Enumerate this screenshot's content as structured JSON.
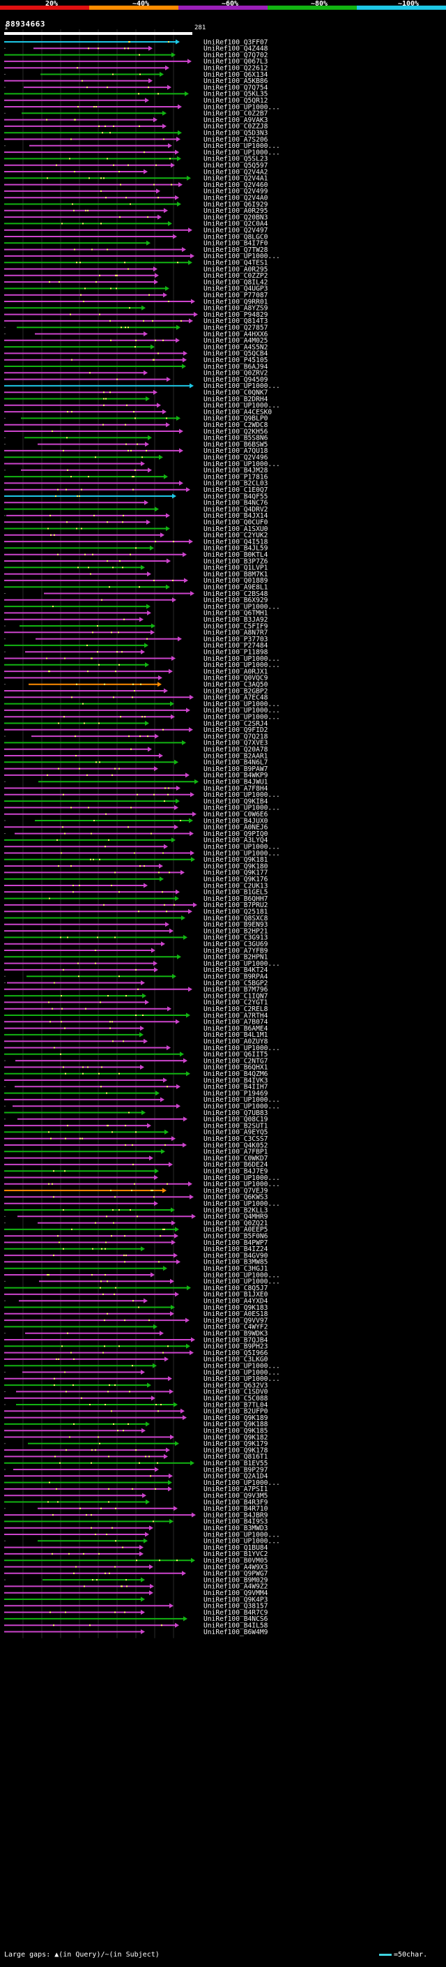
{
  "query_id": "88934663",
  "legend": {
    "labels": [
      "20%",
      "~40%",
      "~60%",
      "~80%",
      "~100%"
    ],
    "colors": [
      "#e01010",
      "#ff8c00",
      "#9b1fb8",
      "#12b412",
      "#1ec8e6"
    ]
  },
  "ruler": {
    "start": "1",
    "end": "281"
  },
  "footer": {
    "gaps_text": "Large gaps: ▲(in Query)/~(in Subject)",
    "scale_text": "=50char."
  },
  "colors": {
    "background": "#000000",
    "query_bar": "#ffffff",
    "grid": "#2a2a2a",
    "dots": "#ffff66"
  },
  "hits": [
    {
      "name": "UniRef100_Q3FF07",
      "color": "#1ec8e6"
    },
    {
      "name": "UniRef100_Q4Z448",
      "color": "#cc44cc"
    },
    {
      "name": "UniRef100_Q7Q702",
      "color": "#12b412"
    },
    {
      "name": "UniRef100_Q067L3",
      "color": "#cc44cc"
    },
    {
      "name": "UniRef100_Q22612",
      "color": "#cc44cc"
    },
    {
      "name": "UniRef100_Q6X134",
      "color": "#12b412"
    },
    {
      "name": "UniRef100_A5KB86",
      "color": "#cc44cc"
    },
    {
      "name": "UniRef100_Q7Q754",
      "color": "#cc44cc"
    },
    {
      "name": "UniRef100_Q5KL35",
      "color": "#12b412"
    },
    {
      "name": "UniRef100_Q5QR12",
      "color": "#cc44cc"
    },
    {
      "name": "UniRef100_UP1000...",
      "color": "#cc44cc"
    },
    {
      "name": "UniRef100_C0Z2B7",
      "color": "#12b412"
    },
    {
      "name": "UniRef100_A9VAK3",
      "color": "#cc44cc"
    },
    {
      "name": "UniRef100_C0ZZJ8",
      "color": "#cc44cc"
    },
    {
      "name": "UniRef100_Q5D3N3",
      "color": "#12b412"
    },
    {
      "name": "UniRef100_A7S206",
      "color": "#cc44cc"
    },
    {
      "name": "UniRef100_UP1000...",
      "color": "#cc44cc"
    },
    {
      "name": "UniRef100_UP1000...",
      "color": "#cc44cc"
    },
    {
      "name": "UniRef100_Q5SL23",
      "color": "#12b412"
    },
    {
      "name": "UniRef100_Q5Q597",
      "color": "#cc44cc"
    },
    {
      "name": "UniRef100_Q2V4A2",
      "color": "#cc44cc"
    },
    {
      "name": "UniRef100_Q2V4A1",
      "color": "#12b412"
    },
    {
      "name": "UniRef100_Q2V460",
      "color": "#cc44cc"
    },
    {
      "name": "UniRef100_Q2V499",
      "color": "#cc44cc"
    },
    {
      "name": "UniRef100_Q2V4A0",
      "color": "#cc44cc"
    },
    {
      "name": "UniRef100_Q6I929",
      "color": "#12b412"
    },
    {
      "name": "UniRef100_A0R295",
      "color": "#cc44cc"
    },
    {
      "name": "UniRef100_Q20BN3",
      "color": "#cc44cc"
    },
    {
      "name": "UniRef100_Q2C0A4",
      "color": "#12b412"
    },
    {
      "name": "UniRef100_Q2V497",
      "color": "#cc44cc"
    },
    {
      "name": "UniRef100_Q8LGC0",
      "color": "#cc44cc"
    },
    {
      "name": "UniRef100_B4I7F0",
      "color": "#12b412"
    },
    {
      "name": "UniRef100_Q7TW28",
      "color": "#cc44cc"
    },
    {
      "name": "UniRef100_UP1000...",
      "color": "#cc44cc"
    },
    {
      "name": "UniRef100_Q4TES1",
      "color": "#12b412"
    },
    {
      "name": "UniRef100_A0R295",
      "color": "#cc44cc"
    },
    {
      "name": "UniRef100_C0ZZP2",
      "color": "#cc44cc"
    },
    {
      "name": "UniRef100_Q8IL42",
      "color": "#cc44cc"
    },
    {
      "name": "UniRef100_Q4UGP3",
      "color": "#12b412"
    },
    {
      "name": "UniRef100_P77087",
      "color": "#cc44cc"
    },
    {
      "name": "UniRef100_Q9RR01",
      "color": "#cc44cc"
    },
    {
      "name": "UniRef100_A8YZS9",
      "color": "#12b412"
    },
    {
      "name": "UniRef100_P94829",
      "color": "#cc44cc"
    },
    {
      "name": "UniRef100_Q814T3",
      "color": "#cc44cc"
    },
    {
      "name": "UniRef100_Q27857",
      "color": "#12b412"
    },
    {
      "name": "UniRef100_A4HXX6",
      "color": "#cc44cc"
    },
    {
      "name": "UniRef100_A4M025",
      "color": "#cc44cc"
    },
    {
      "name": "UniRef100_A4S5N2",
      "color": "#12b412"
    },
    {
      "name": "UniRef100_Q5QCB4",
      "color": "#cc44cc"
    },
    {
      "name": "UniRef100_P45105",
      "color": "#cc44cc"
    },
    {
      "name": "UniRef100_B6AJ94",
      "color": "#12b412"
    },
    {
      "name": "UniRef100_Q0ZRV2",
      "color": "#cc44cc"
    },
    {
      "name": "UniRef100_Q94509",
      "color": "#cc44cc"
    },
    {
      "name": "UniRef100_UP1000...",
      "color": "#1ec8e6"
    },
    {
      "name": "UniRef100_C0QNK7",
      "color": "#cc44cc"
    },
    {
      "name": "UniRef100_B2DRH4",
      "color": "#12b412"
    },
    {
      "name": "UniRef100_UP1000...",
      "color": "#cc44cc"
    },
    {
      "name": "UniRef100_A4CESK0",
      "color": "#cc44cc"
    },
    {
      "name": "UniRef100_Q9BLP0",
      "color": "#12b412"
    },
    {
      "name": "UniRef100_C2WDC8",
      "color": "#cc44cc"
    },
    {
      "name": "UniRef100_Q2KH56",
      "color": "#cc44cc"
    },
    {
      "name": "UniRef100_B5S8N6",
      "color": "#12b412"
    },
    {
      "name": "UniRef100_B6BSW5",
      "color": "#cc44cc"
    },
    {
      "name": "UniRef100_A7QU18",
      "color": "#cc44cc"
    },
    {
      "name": "UniRef100_Q2V496",
      "color": "#12b412"
    },
    {
      "name": "UniRef100_UP1000...",
      "color": "#cc44cc"
    },
    {
      "name": "UniRef100_B4JM28",
      "color": "#cc44cc"
    },
    {
      "name": "UniRef100_P17816",
      "color": "#12b412"
    },
    {
      "name": "UniRef100_B2CL03",
      "color": "#cc44cc"
    },
    {
      "name": "UniRef100_C1E0Q7",
      "color": "#cc44cc"
    },
    {
      "name": "UniRef100_B4QF55",
      "color": "#1ec8e6"
    },
    {
      "name": "UniRef100_B4NC76",
      "color": "#cc44cc"
    },
    {
      "name": "UniRef100_Q4DRV2",
      "color": "#12b412"
    },
    {
      "name": "UniRef100_B4JX14",
      "color": "#cc44cc"
    },
    {
      "name": "UniRef100_Q0CUF0",
      "color": "#cc44cc"
    },
    {
      "name": "UniRef100_A1SXU0",
      "color": "#12b412"
    },
    {
      "name": "UniRef100_C2YUK2",
      "color": "#cc44cc"
    },
    {
      "name": "UniRef100_Q4I518",
      "color": "#cc44cc"
    },
    {
      "name": "UniRef100_B4JL59",
      "color": "#12b412"
    },
    {
      "name": "UniRef100_B0KTL4",
      "color": "#cc44cc"
    },
    {
      "name": "UniRef100_B3P7Z6",
      "color": "#cc44cc"
    },
    {
      "name": "UniRef100_Q1LVP1",
      "color": "#12b412"
    },
    {
      "name": "UniRef100_B8M7K1",
      "color": "#cc44cc"
    },
    {
      "name": "UniRef100_Q01889",
      "color": "#cc44cc"
    },
    {
      "name": "UniRef100_A9E8L1",
      "color": "#12b412"
    },
    {
      "name": "UniRef100_C2BS48",
      "color": "#cc44cc"
    },
    {
      "name": "UniRef100_B6X929",
      "color": "#cc44cc"
    },
    {
      "name": "UniRef100_UP1000...",
      "color": "#12b412"
    },
    {
      "name": "UniRef100_Q6TMH1",
      "color": "#cc44cc"
    },
    {
      "name": "UniRef100_B3JA92",
      "color": "#cc44cc"
    },
    {
      "name": "UniRef100_C5FIF9",
      "color": "#12b412"
    },
    {
      "name": "UniRef100_A8N7R7",
      "color": "#cc44cc"
    },
    {
      "name": "UniRef100_P37703",
      "color": "#cc44cc"
    },
    {
      "name": "UniRef100_P27484",
      "color": "#12b412"
    },
    {
      "name": "UniRef100_P11898",
      "color": "#cc44cc"
    },
    {
      "name": "UniRef100_UP1000...",
      "color": "#cc44cc"
    },
    {
      "name": "UniRef100_UP1000...",
      "color": "#12b412"
    },
    {
      "name": "UniRef100_A0RJX1",
      "color": "#cc44cc"
    },
    {
      "name": "UniRef100_Q0VQC9",
      "color": "#cc44cc"
    },
    {
      "name": "UniRef100_C3AQ50",
      "color": "#ff8c00"
    },
    {
      "name": "UniRef100_B2GBP2",
      "color": "#cc44cc"
    },
    {
      "name": "UniRef100_A7EC48",
      "color": "#cc44cc"
    },
    {
      "name": "UniRef100_UP1000...",
      "color": "#12b412"
    },
    {
      "name": "UniRef100_UP1000...",
      "color": "#cc44cc"
    },
    {
      "name": "UniRef100_UP1000...",
      "color": "#cc44cc"
    },
    {
      "name": "UniRef100_C2SRJ4",
      "color": "#12b412"
    },
    {
      "name": "UniRef100_Q9FID2",
      "color": "#cc44cc"
    },
    {
      "name": "UniRef100_Q7Q218",
      "color": "#cc44cc"
    },
    {
      "name": "UniRef100_Q7XVE3",
      "color": "#12b412"
    },
    {
      "name": "UniRef100_Q20A78",
      "color": "#cc44cc"
    },
    {
      "name": "UniRef100_B2AAR1",
      "color": "#cc44cc"
    },
    {
      "name": "UniRef100_B4N6L7",
      "color": "#12b412"
    },
    {
      "name": "UniRef100_B9PAW7",
      "color": "#cc44cc"
    },
    {
      "name": "UniRef100_B4WKP9",
      "color": "#cc44cc"
    },
    {
      "name": "UniRef100_B4JWU1",
      "color": "#12b412"
    },
    {
      "name": "UniRef100_A7F8H4",
      "color": "#cc44cc"
    },
    {
      "name": "UniRef100_UP1000...",
      "color": "#cc44cc"
    },
    {
      "name": "UniRef100_Q9KIB4",
      "color": "#12b412"
    },
    {
      "name": "UniRef100_UP1000...",
      "color": "#cc44cc"
    },
    {
      "name": "UniRef100_C0W6E6",
      "color": "#cc44cc"
    },
    {
      "name": "UniRef100_B4JUX0",
      "color": "#12b412"
    },
    {
      "name": "UniRef100_A0NEJ6",
      "color": "#cc44cc"
    },
    {
      "name": "UniRef100_Q9PIQ0",
      "color": "#cc44cc"
    },
    {
      "name": "UniRef100_A3LYQ4",
      "color": "#12b412"
    },
    {
      "name": "UniRef100_UP1000...",
      "color": "#cc44cc"
    },
    {
      "name": "UniRef100_UP1000...",
      "color": "#cc44cc"
    },
    {
      "name": "UniRef100_Q9K181",
      "color": "#12b412"
    },
    {
      "name": "UniRef100_Q9K180",
      "color": "#cc44cc"
    },
    {
      "name": "UniRef100_Q9K177",
      "color": "#cc44cc"
    },
    {
      "name": "UniRef100_Q9K176",
      "color": "#12b412"
    },
    {
      "name": "UniRef100_C2UK13",
      "color": "#cc44cc"
    },
    {
      "name": "UniRef100_B1GEL5",
      "color": "#cc44cc"
    },
    {
      "name": "UniRef100_B6QHH7",
      "color": "#12b412"
    },
    {
      "name": "UniRef100_B7PRU2",
      "color": "#cc44cc"
    },
    {
      "name": "UniRef100_Q25181",
      "color": "#cc44cc"
    },
    {
      "name": "UniRef100_Q8SXC8",
      "color": "#12b412"
    },
    {
      "name": "UniRef100_B9EN93",
      "color": "#cc44cc"
    },
    {
      "name": "UniRef100_B2HP21",
      "color": "#cc44cc"
    },
    {
      "name": "UniRef100_C3G913",
      "color": "#12b412"
    },
    {
      "name": "UniRef100_C3GU69",
      "color": "#cc44cc"
    },
    {
      "name": "UniRef100_A7YFB9",
      "color": "#cc44cc"
    },
    {
      "name": "UniRef100_B2HPN1",
      "color": "#12b412"
    },
    {
      "name": "UniRef100_UP1000...",
      "color": "#cc44cc"
    },
    {
      "name": "UniRef100_B4KT24",
      "color": "#cc44cc"
    },
    {
      "name": "UniRef100_B9RPA4",
      "color": "#12b412"
    },
    {
      "name": "UniRef100_C5BGP2",
      "color": "#cc44cc"
    },
    {
      "name": "UniRef100_B7M796",
      "color": "#cc44cc"
    },
    {
      "name": "UniRef100_C1IQN7",
      "color": "#12b412"
    },
    {
      "name": "UniRef100_C2YGT1",
      "color": "#cc44cc"
    },
    {
      "name": "UniRef100_C2REL8",
      "color": "#cc44cc"
    },
    {
      "name": "UniRef100_A7RTH4",
      "color": "#12b412"
    },
    {
      "name": "UniRef100_A7B074",
      "color": "#cc44cc"
    },
    {
      "name": "UniRef100_B6AME4",
      "color": "#cc44cc"
    },
    {
      "name": "UniRef100_B4L1M1",
      "color": "#12b412"
    },
    {
      "name": "UniRef100_A0ZUY8",
      "color": "#cc44cc"
    },
    {
      "name": "UniRef100_UP1000...",
      "color": "#cc44cc"
    },
    {
      "name": "UniRef100_Q6IIT5",
      "color": "#12b412"
    },
    {
      "name": "UniRef100_C2NTG7",
      "color": "#cc44cc"
    },
    {
      "name": "UniRef100_B6QHX1",
      "color": "#cc44cc"
    },
    {
      "name": "UniRef100_B4QZM6",
      "color": "#12b412"
    },
    {
      "name": "UniRef100_B4IVK3",
      "color": "#cc44cc"
    },
    {
      "name": "UniRef100_B4IIH7",
      "color": "#cc44cc"
    },
    {
      "name": "UniRef100_P19469",
      "color": "#12b412"
    },
    {
      "name": "UniRef100_UP1000...",
      "color": "#cc44cc"
    },
    {
      "name": "UniRef100_UP1000...",
      "color": "#cc44cc"
    },
    {
      "name": "UniRef100_Q7UB83",
      "color": "#12b412"
    },
    {
      "name": "UniRef100_Q08C19",
      "color": "#cc44cc"
    },
    {
      "name": "UniRef100_B2SUT1",
      "color": "#cc44cc"
    },
    {
      "name": "UniRef100_A9EYQ5",
      "color": "#12b412"
    },
    {
      "name": "UniRef100_C3CSS7",
      "color": "#cc44cc"
    },
    {
      "name": "UniRef100_Q4K052",
      "color": "#cc44cc"
    },
    {
      "name": "UniRef100_A7FBP1",
      "color": "#12b412"
    },
    {
      "name": "UniRef100_C0WKD7",
      "color": "#cc44cc"
    },
    {
      "name": "UniRef100_B6DE24",
      "color": "#cc44cc"
    },
    {
      "name": "UniRef100_B4J7E9",
      "color": "#12b412"
    },
    {
      "name": "UniRef100_UP1000...",
      "color": "#cc44cc"
    },
    {
      "name": "UniRef100_UP1000...",
      "color": "#cc44cc"
    },
    {
      "name": "UniRef100_Q7VEJ9",
      "color": "#ff8c00"
    },
    {
      "name": "UniRef100_Q6KWS3",
      "color": "#cc44cc"
    },
    {
      "name": "UniRef100_UP1000...",
      "color": "#cc44cc"
    },
    {
      "name": "UniRef100_B2KLL3",
      "color": "#12b412"
    },
    {
      "name": "UniRef100_Q4MHR9",
      "color": "#cc44cc"
    },
    {
      "name": "UniRef100_Q0ZQ21",
      "color": "#cc44cc"
    },
    {
      "name": "UniRef100_A0EEP5",
      "color": "#12b412"
    },
    {
      "name": "UniRef100_B5F0N6",
      "color": "#cc44cc"
    },
    {
      "name": "UniRef100_B4PWP7",
      "color": "#cc44cc"
    },
    {
      "name": "UniRef100_B4IZ24",
      "color": "#12b412"
    },
    {
      "name": "UniRef100_B4GV90",
      "color": "#cc44cc"
    },
    {
      "name": "UniRef100_B3MW85",
      "color": "#cc44cc"
    },
    {
      "name": "UniRef100_C3HGJ1",
      "color": "#12b412"
    },
    {
      "name": "UniRef100_UP1000...",
      "color": "#cc44cc"
    },
    {
      "name": "UniRef100_UP1000...",
      "color": "#cc44cc"
    },
    {
      "name": "UniRef100_C8Q5J7",
      "color": "#12b412"
    },
    {
      "name": "UniRef100_B1JXE0",
      "color": "#cc44cc"
    },
    {
      "name": "UniRef100_A4YXD4",
      "color": "#cc44cc"
    },
    {
      "name": "UniRef100_Q9K183",
      "color": "#12b412"
    },
    {
      "name": "UniRef100_A0ES18",
      "color": "#cc44cc"
    },
    {
      "name": "UniRef100_Q9VV97",
      "color": "#cc44cc"
    },
    {
      "name": "UniRef100_C4WYF2",
      "color": "#12b412"
    },
    {
      "name": "UniRef100_B9WDK3",
      "color": "#cc44cc"
    },
    {
      "name": "UniRef100_B7QJB4",
      "color": "#cc44cc"
    },
    {
      "name": "UniRef100_B9PH23",
      "color": "#12b412"
    },
    {
      "name": "UniRef100_Q5I966",
      "color": "#cc44cc"
    },
    {
      "name": "UniRef100_C3LKG0",
      "color": "#cc44cc"
    },
    {
      "name": "UniRef100_UP1000...",
      "color": "#12b412"
    },
    {
      "name": "UniRef100_UP1000...",
      "color": "#cc44cc"
    },
    {
      "name": "UniRef100_UP1000...",
      "color": "#cc44cc"
    },
    {
      "name": "UniRef100_Q632V3",
      "color": "#12b412"
    },
    {
      "name": "UniRef100_C1SDV0",
      "color": "#cc44cc"
    },
    {
      "name": "UniRef100_C5C088",
      "color": "#cc44cc"
    },
    {
      "name": "UniRef100_B7TL04",
      "color": "#12b412"
    },
    {
      "name": "UniRef100_B2UFP0",
      "color": "#cc44cc"
    },
    {
      "name": "UniRef100_Q9K189",
      "color": "#cc44cc"
    },
    {
      "name": "UniRef100_Q9K188",
      "color": "#12b412"
    },
    {
      "name": "UniRef100_Q9K185",
      "color": "#cc44cc"
    },
    {
      "name": "UniRef100_Q9K182",
      "color": "#cc44cc"
    },
    {
      "name": "UniRef100_Q9K179",
      "color": "#12b412"
    },
    {
      "name": "UniRef100_Q9K178",
      "color": "#cc44cc"
    },
    {
      "name": "UniRef100_Q816T1",
      "color": "#cc44cc"
    },
    {
      "name": "UniRef100_B1EV55",
      "color": "#12b412"
    },
    {
      "name": "UniRef100_B9P297",
      "color": "#cc44cc"
    },
    {
      "name": "UniRef100_Q2A1D4",
      "color": "#cc44cc"
    },
    {
      "name": "UniRef100_UP1000...",
      "color": "#12b412"
    },
    {
      "name": "UniRef100_A7PSI1",
      "color": "#cc44cc"
    },
    {
      "name": "UniRef100_Q9V3M5",
      "color": "#cc44cc"
    },
    {
      "name": "UniRef100_B4R3F9",
      "color": "#12b412"
    },
    {
      "name": "UniRef100_B4R710",
      "color": "#cc44cc"
    },
    {
      "name": "UniRef100_B4JBR9",
      "color": "#cc44cc"
    },
    {
      "name": "UniRef100_B4I9S3",
      "color": "#12b412"
    },
    {
      "name": "UniRef100_B3MWD3",
      "color": "#cc44cc"
    },
    {
      "name": "UniRef100_UP1000...",
      "color": "#cc44cc"
    },
    {
      "name": "UniRef100_UP1000...",
      "color": "#12b412"
    },
    {
      "name": "UniRef100_Q1BU84",
      "color": "#cc44cc"
    },
    {
      "name": "UniRef100_B1YVC2",
      "color": "#cc44cc"
    },
    {
      "name": "UniRef100_B0VM05",
      "color": "#12b412"
    },
    {
      "name": "UniRef100_A4W9X3",
      "color": "#cc44cc"
    },
    {
      "name": "UniRef100_Q9PWG7",
      "color": "#cc44cc"
    },
    {
      "name": "UniRef100_B9M029",
      "color": "#12b412"
    },
    {
      "name": "UniRef100_A4W9Z2",
      "color": "#cc44cc"
    },
    {
      "name": "UniRef100_Q9VMM4",
      "color": "#cc44cc"
    },
    {
      "name": "UniRef100_Q9K4P3",
      "color": "#12b412"
    },
    {
      "name": "UniRef100_Q38157",
      "color": "#cc44cc"
    },
    {
      "name": "UniRef100_B4R7C9",
      "color": "#cc44cc"
    },
    {
      "name": "UniRef100_B4NCS6",
      "color": "#12b412"
    },
    {
      "name": "UniRef100_B4IL58",
      "color": "#cc44cc"
    },
    {
      "name": "UniRef100_B6W4M9",
      "color": "#cc44cc"
    }
  ]
}
